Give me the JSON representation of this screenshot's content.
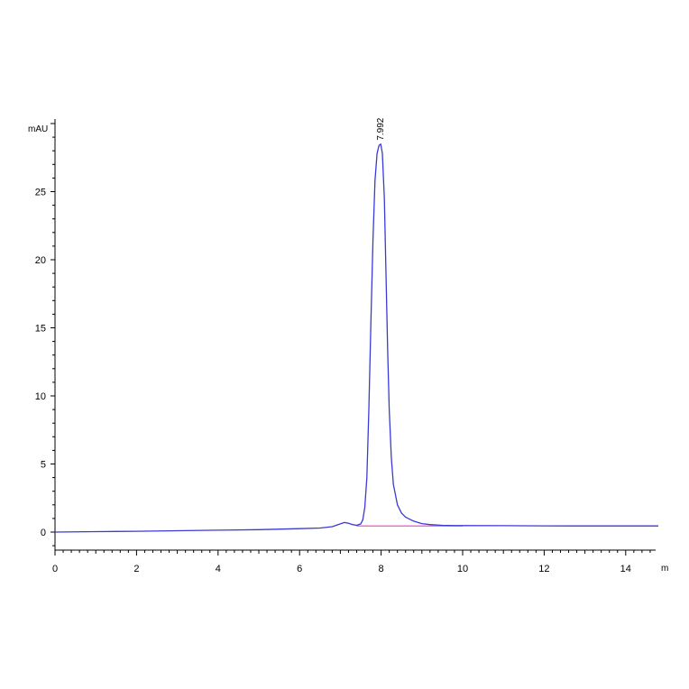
{
  "chart_data": {
    "type": "line",
    "ylabel": "mAU",
    "xlabel": "m",
    "xlim": [
      0,
      14.8
    ],
    "ylim": [
      -1.2,
      30.5
    ],
    "x_ticks": [
      0,
      2,
      4,
      6,
      8,
      10,
      12,
      14
    ],
    "x_tick_labels": [
      "0",
      "2",
      "4",
      "6",
      "8",
      "10",
      "12",
      "14"
    ],
    "y_ticks": [
      0,
      5,
      10,
      15,
      20,
      25
    ],
    "y_tick_labels": [
      "0",
      "5",
      "10",
      "15",
      "20",
      "25"
    ],
    "grid": false,
    "series": [
      {
        "color": "#3a3ad6",
        "x": [
          0.0,
          1.0,
          2.0,
          3.0,
          4.0,
          5.0,
          6.0,
          6.5,
          6.8,
          7.0,
          7.1,
          7.2,
          7.3,
          7.4,
          7.5,
          7.55,
          7.6,
          7.65,
          7.7,
          7.75,
          7.8,
          7.85,
          7.9,
          7.95,
          7.992,
          8.03,
          8.08,
          8.12,
          8.16,
          8.2,
          8.25,
          8.3,
          8.4,
          8.5,
          8.6,
          8.8,
          9.0,
          9.2,
          9.5,
          9.8,
          10.0,
          11.0,
          12.0,
          13.0,
          14.0,
          14.8
        ],
        "y": [
          0.0,
          0.03,
          0.06,
          0.1,
          0.14,
          0.18,
          0.25,
          0.3,
          0.4,
          0.6,
          0.7,
          0.65,
          0.55,
          0.5,
          0.6,
          0.9,
          1.8,
          4.0,
          9.0,
          15.5,
          21.5,
          25.8,
          27.8,
          28.4,
          28.5,
          27.8,
          24.5,
          19.0,
          13.5,
          9.0,
          5.5,
          3.5,
          2.0,
          1.4,
          1.1,
          0.8,
          0.62,
          0.55,
          0.5,
          0.48,
          0.48,
          0.47,
          0.46,
          0.45,
          0.45,
          0.45
        ]
      },
      {
        "color": "#e040c8",
        "x": [
          7.4,
          10.0
        ],
        "y": [
          0.45,
          0.45
        ]
      }
    ],
    "annotations": [
      {
        "text": "7.992",
        "x": 7.992,
        "y": 28.5
      }
    ]
  }
}
